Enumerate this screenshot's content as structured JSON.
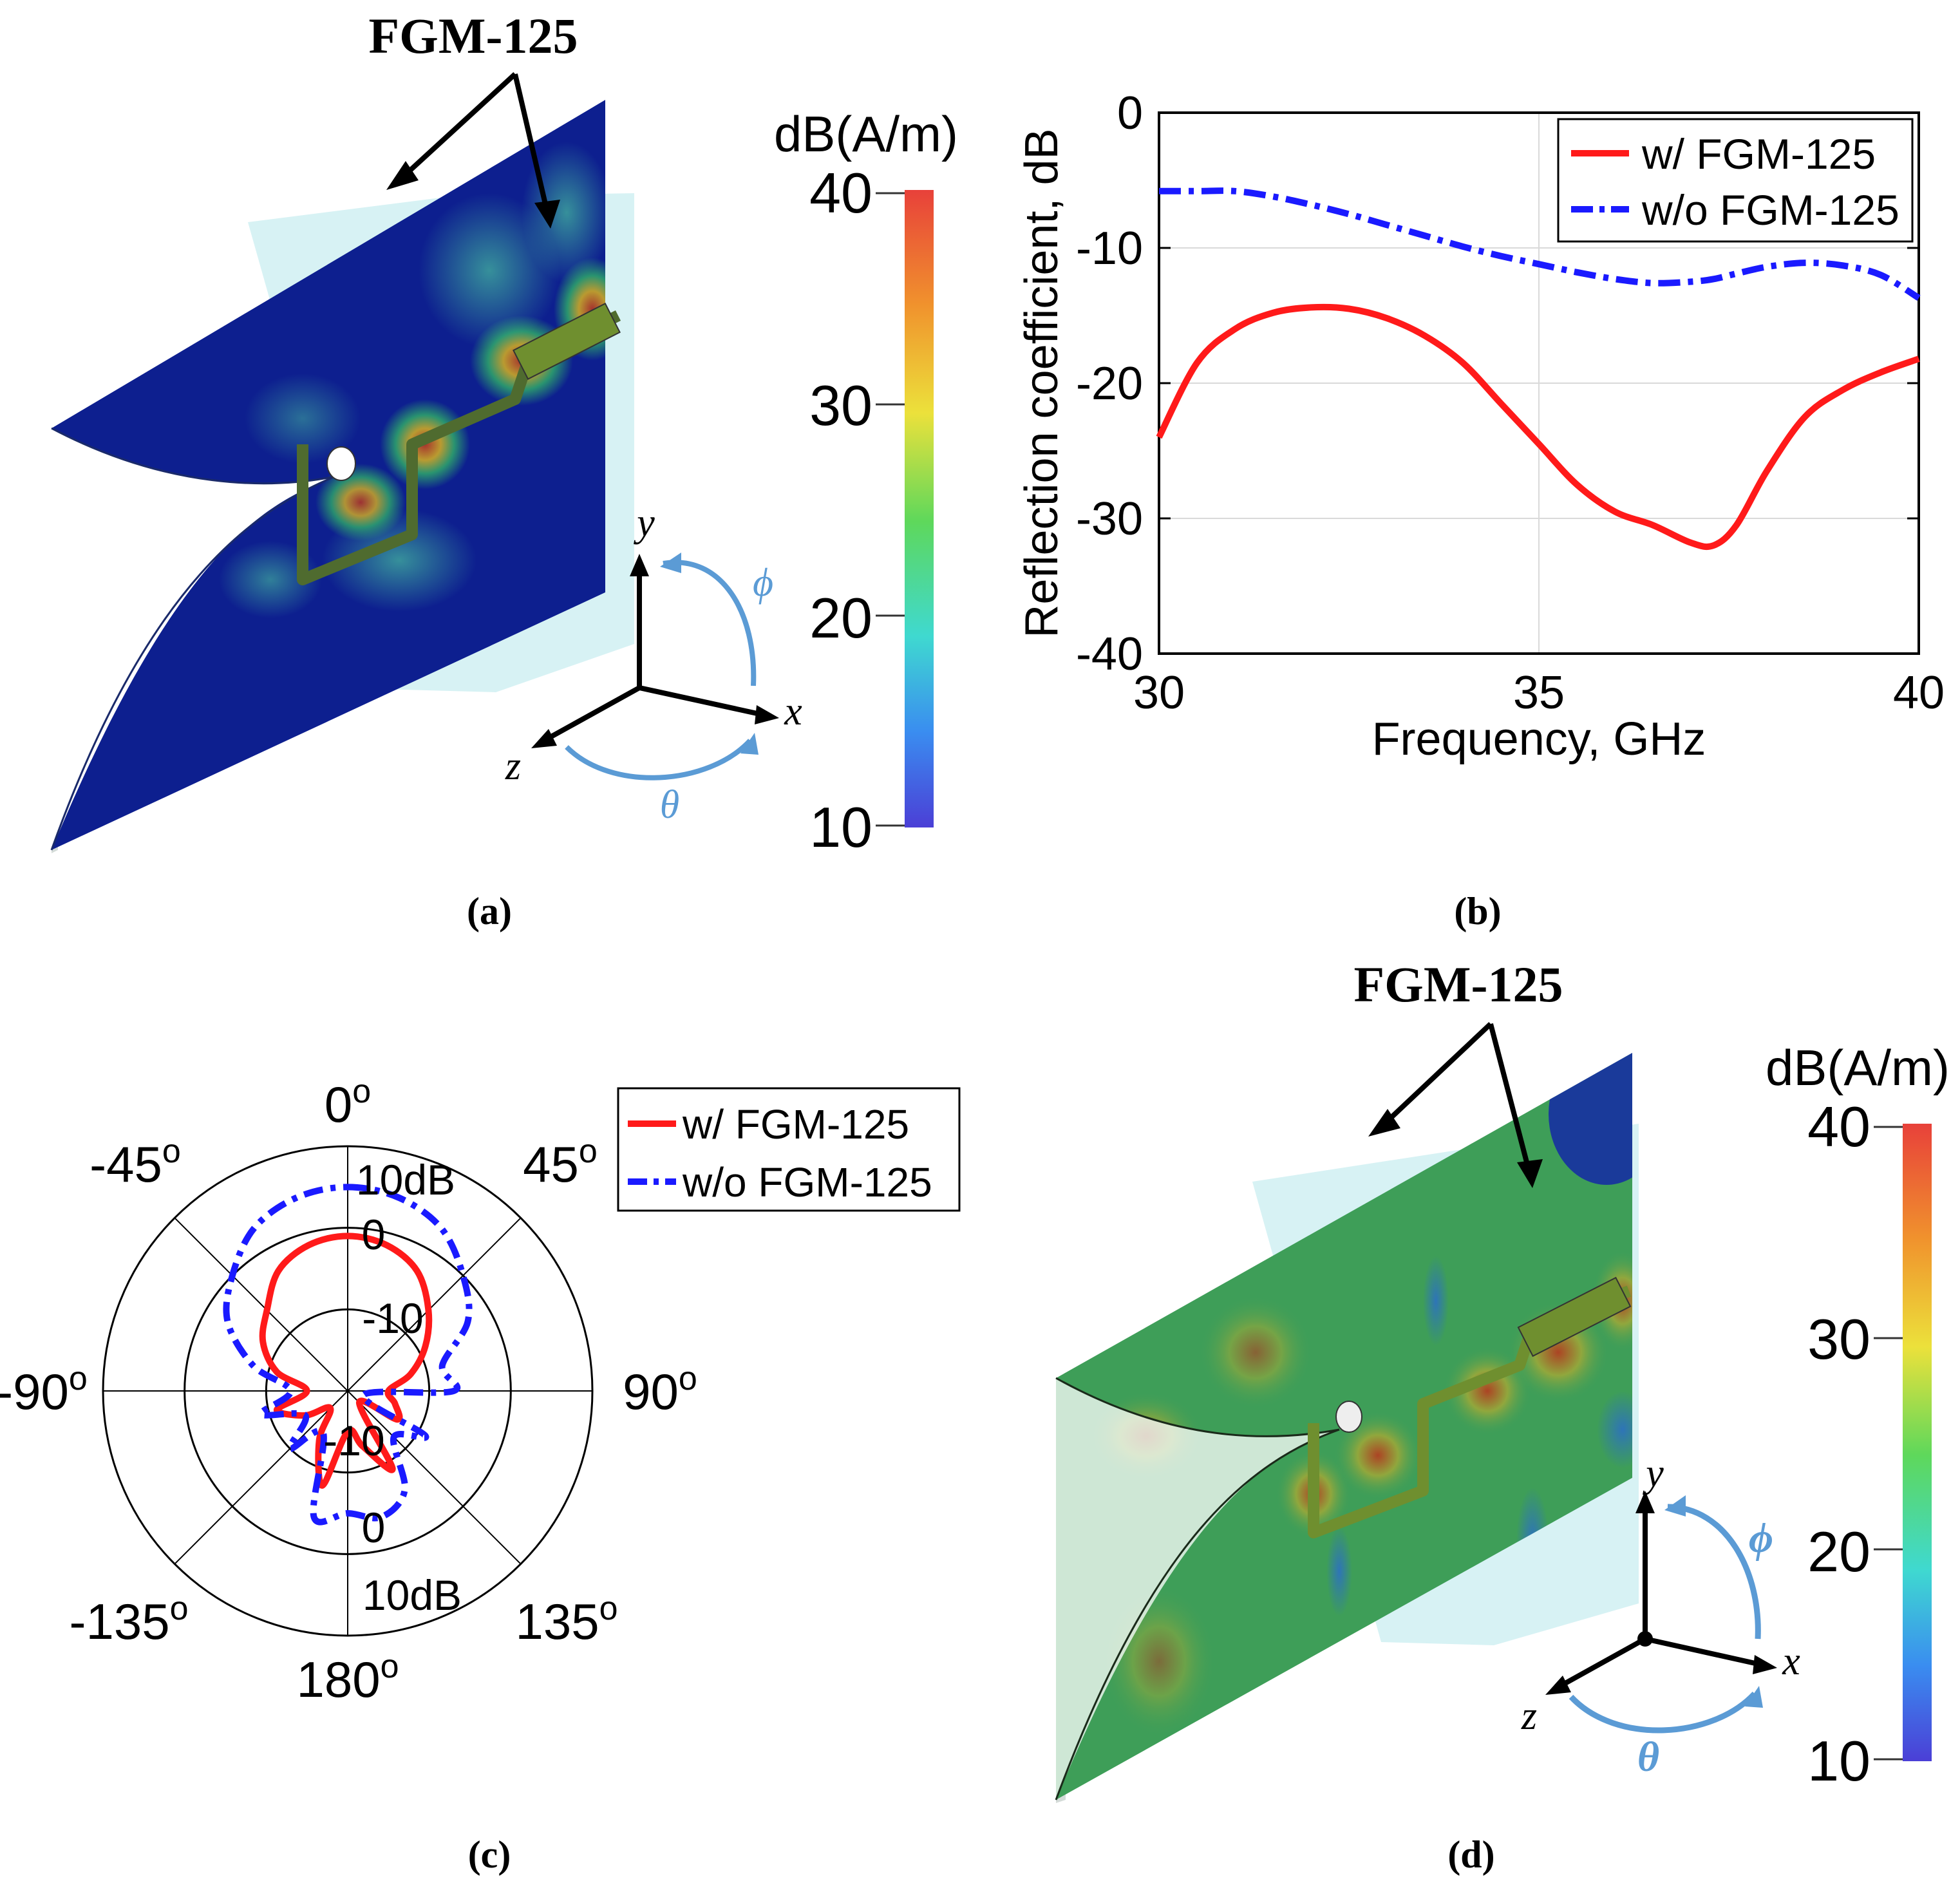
{
  "colors": {
    "red": "#ff1a1a",
    "blue": "#1a1aff",
    "field_low": "#0d1f8f",
    "field_mid": "#2db37a",
    "field_high": "#c23b1e",
    "box": "#bfeef0",
    "axis_arrow": "#5b9bd5",
    "grid": "#d9d9d9"
  },
  "panel_a": {
    "caption": "(a)",
    "callout": "FGM-125",
    "colorbar": {
      "unit": "dB(A/m)",
      "ticks": [
        "40",
        "30",
        "20",
        "10"
      ]
    },
    "axes": {
      "x": "x",
      "y": "y",
      "z": "z",
      "phi": "ϕ",
      "theta": "θ"
    }
  },
  "panel_d": {
    "caption": "(d)",
    "callout": "FGM-125",
    "colorbar": {
      "unit": "dB(A/m)",
      "ticks": [
        "40",
        "30",
        "20",
        "10"
      ]
    },
    "axes": {
      "x": "x",
      "y": "y",
      "z": "z",
      "phi": "ϕ",
      "theta": "θ"
    }
  },
  "panel_b": {
    "caption": "(b)"
  },
  "panel_c": {
    "caption": "(c)"
  },
  "chart_data": [
    {
      "type": "line",
      "xlabel": "Frequency, GHz",
      "ylabel": "Reflection coefficient, dB",
      "xlim": [
        30,
        40
      ],
      "ylim": [
        -40,
        0
      ],
      "xticks": [
        "30",
        "35",
        "40"
      ],
      "yticks": [
        "0",
        "-10",
        "-20",
        "-30",
        "-40"
      ],
      "x": [
        30,
        30.5,
        31,
        31.5,
        32,
        32.5,
        33,
        33.5,
        34,
        34.5,
        35,
        35.5,
        36,
        36.5,
        37,
        37.3,
        37.6,
        38,
        38.5,
        39,
        39.5,
        40
      ],
      "series": [
        {
          "name": "w/ FGM-125",
          "style": "solid",
          "values": [
            -24,
            -18.5,
            -16,
            -14.8,
            -14.4,
            -14.5,
            -15.2,
            -16.5,
            -18.5,
            -21.5,
            -24.5,
            -27.5,
            -29.5,
            -30.5,
            -31.8,
            -32,
            -30.5,
            -26.5,
            -22.5,
            -20.5,
            -19.2,
            -18.2
          ]
        },
        {
          "name": "w/o FGM-125",
          "style": "dashdot",
          "values": [
            -5.8,
            -5.8,
            -5.8,
            -6.2,
            -6.8,
            -7.5,
            -8.3,
            -9.1,
            -9.9,
            -10.6,
            -11.2,
            -11.8,
            -12.3,
            -12.6,
            -12.5,
            -12.3,
            -11.9,
            -11.4,
            -11.1,
            -11.3,
            -12,
            -13.7
          ]
        }
      ]
    },
    {
      "type": "polar",
      "angle_labels": [
        {
          "deg": 0,
          "text": "0",
          "sup": "o"
        },
        {
          "deg": 45,
          "text": "45",
          "sup": "o"
        },
        {
          "deg": 90,
          "text": "90",
          "sup": "o"
        },
        {
          "deg": 135,
          "text": "135",
          "sup": "o"
        },
        {
          "deg": 180,
          "text": "180",
          "sup": "o"
        },
        {
          "deg": -135,
          "text": "-135",
          "sup": "o"
        },
        {
          "deg": -90,
          "text": "-90",
          "sup": "o"
        },
        {
          "deg": -45,
          "text": "-45",
          "sup": "o"
        }
      ],
      "rlim": [
        -20,
        10
      ],
      "ring_labels": [
        "10dB",
        "0",
        "-10",
        "-10",
        "0",
        "10dB"
      ],
      "theta": [
        0,
        15,
        30,
        45,
        60,
        75,
        90,
        105,
        120,
        135,
        150,
        165,
        180,
        -165,
        -150,
        -135,
        -120,
        -105,
        -90,
        -75,
        -60,
        -45,
        -30,
        -15
      ],
      "series": [
        {
          "name": "w/ FGM-125",
          "style": "solid",
          "values": [
            -1,
            -1.5,
            -3,
            -6,
            -9,
            -12,
            -15,
            -14,
            -13,
            -18,
            -9,
            -13,
            -15,
            -8,
            -13,
            -17,
            -14,
            -11,
            -15,
            -11,
            -8,
            -6,
            -3,
            -1.5
          ]
        },
        {
          "name": "w/o FGM-125",
          "style": "dashdot",
          "values": [
            5,
            4.5,
            3,
            0,
            -3,
            -8,
            -7,
            -18,
            -9,
            -12,
            -6,
            -4,
            -5,
            -4,
            -14,
            -10,
            -14,
            -9,
            -13,
            -8,
            -3,
            0,
            3,
            4.5
          ]
        }
      ],
      "legend": [
        "w/ FGM-125",
        "w/o FGM-125"
      ]
    }
  ]
}
